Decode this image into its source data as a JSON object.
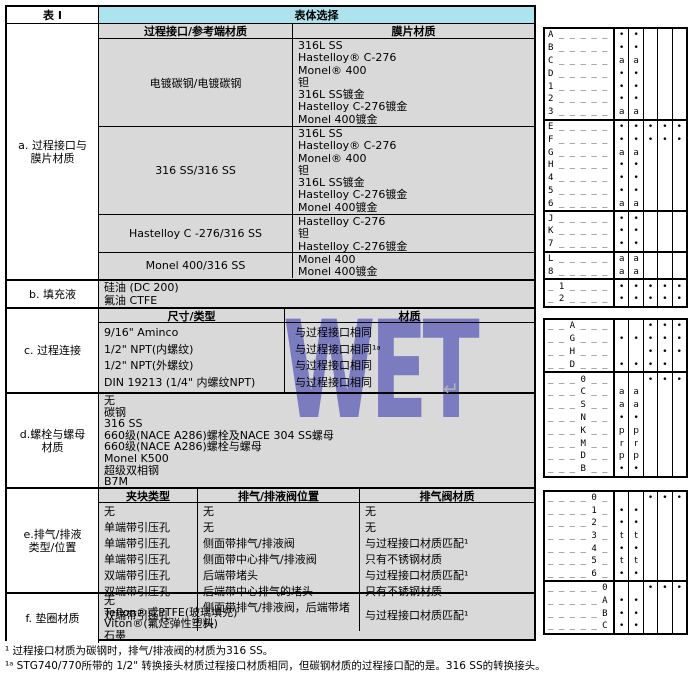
{
  "table": {
    "title": "表 I",
    "body_header": "表体选择"
  },
  "watermark": {
    "text": "WET",
    "color": "#9191e2"
  },
  "return_mark": "↵",
  "colors": {
    "header_cyan": "#ade3ee",
    "cell_gray": "#d9d9d9"
  },
  "sections": {
    "a": {
      "label": "a. 过程接口与\n膜片材质",
      "col1_header": "过程接口/参考端材质",
      "col2_header": "膜片材质",
      "rows": [
        {
          "interface": "电镀碳钢/电镀碳钢",
          "materials": "316L SS\nHastelloy® C-276\nMonel® 400\n钽\n316L SS镀金\nHastelloy C-276镀金\nMonel 400镀金"
        },
        {
          "interface": "316 SS/316 SS",
          "materials": "316L SS\nHastelloy® C-276\nMonel® 400\n钽\n316L SS镀金\nHastelloy C-276镀金\nMonel 400镀金"
        },
        {
          "interface": "Hastelloy C -276/316 SS",
          "materials": "Hastelloy C-276\n钽\nHastelloy C-276镀金"
        },
        {
          "interface": "Monel 400/316 SS",
          "materials": "Monel 400\nMonel 400镀金"
        }
      ]
    },
    "b": {
      "label": "b. 填充液",
      "lines": "硅油 (DC 200)\n氟油 CTFE"
    },
    "c": {
      "label": "c. 过程连接",
      "col1_header": "尺寸/类型",
      "col2_header": "材质",
      "rows": [
        {
          "t": "9/16\" Aminco",
          "m": "与过程接口相同"
        },
        {
          "t": "1/2\" NPT(内螺纹)",
          "m": "与过程接口相同¹ᵃ"
        },
        {
          "t": "1/2\"  NPT(外螺纹)",
          "m": "与过程接口相同"
        },
        {
          "t": "DIN 19213 (1/4\" 内螺纹NPT)",
          "m": "与过程接口相同"
        }
      ]
    },
    "d": {
      "label": "d.螺栓与螺母\n材质",
      "lines": "无\n碳钢\n316 SS\n660级(NACE A286)螺栓及NACE 304 SS螺母\n660级(NACE A286)螺栓与螺母\nMonel K500\n超级双相钢\nB7M"
    },
    "e": {
      "label": "e.排气/排液\n类型/位置",
      "col_headers": [
        "夹块类型",
        "排气/排液阀位置",
        "排气阀材质"
      ],
      "rows": [
        [
          "无",
          "无",
          "无"
        ],
        [
          "单端带引压孔",
          "无",
          "无"
        ],
        [
          "单端带引压孔",
          "侧面带排气/排液阀",
          "与过程接口材质匹配¹"
        ],
        [
          "单端带引压孔",
          "侧面带中心排气/排液阀",
          "只有不锈钢材质"
        ],
        [
          "双端带引压孔",
          "后端带堵头",
          "与过程接口材质匹配¹"
        ],
        [
          "双端带引压孔",
          "后端带中心排气的堵头",
          "只有不锈钢材质"
        ],
        [
          "双端带引压孔",
          "侧面带排气/排液阀，后端带堵头",
          "与过程接口材质匹配¹"
        ]
      ]
    },
    "f": {
      "label": "f. 垫圈材质",
      "lines": "无\nTeflon®或PTFE(玻璃填充)\nViton®(氟烃弹性塑料)\n石墨"
    }
  },
  "footnotes": [
    "¹ 过程接口材质为碳钢时，排气/排液阀的材质为316 SS。",
    "¹ᵃ STG740/770所带的 1/2\" 转换接头材质过程接口材质相同，但碳钢材质的过程接口配的是。316 SS的转换接头。"
  ],
  "code_tables": {
    "block1": {
      "groups": [
        {
          "rows": [
            {
              "code": "A _ _ _ _ _",
              "cells": [
                "•",
                "•",
                "",
                "",
                ""
              ]
            },
            {
              "code": "B _ _ _ _ _",
              "cells": [
                "•",
                "•",
                "",
                "",
                ""
              ]
            },
            {
              "code": "C _ _ _ _ _",
              "cells": [
                "a",
                "a",
                "",
                "",
                ""
              ]
            },
            {
              "code": "D _ _ _ _ _",
              "cells": [
                "•",
                "•",
                "",
                "",
                ""
              ]
            },
            {
              "code": "1 _ _ _ _ _",
              "cells": [
                "•",
                "•",
                "",
                "",
                ""
              ]
            },
            {
              "code": "2 _ _ _ _ _",
              "cells": [
                "•",
                "•",
                "",
                "",
                ""
              ]
            },
            {
              "code": "3 _ _ _ _ _",
              "cells": [
                "a",
                "a",
                "",
                "",
                ""
              ]
            }
          ]
        },
        {
          "rows": [
            {
              "code": "E _ _ _ _ _",
              "cells": [
                "•",
                "•",
                "•",
                "•",
                "•"
              ]
            },
            {
              "code": "F _ _ _ _ _",
              "cells": [
                "•",
                "•",
                "•",
                "•",
                "•"
              ]
            },
            {
              "code": "G _ _ _ _ _",
              "cells": [
                "a",
                "a",
                "",
                "",
                ""
              ]
            },
            {
              "code": "H _ _ _ _ _",
              "cells": [
                "•",
                "•",
                "",
                "",
                ""
              ]
            },
            {
              "code": "4 _ _ _ _ _",
              "cells": [
                "•",
                "•",
                "",
                "",
                ""
              ]
            },
            {
              "code": "5 _ _ _ _ _",
              "cells": [
                "•",
                "•",
                "",
                "",
                ""
              ]
            },
            {
              "code": "6 _ _ _ _ _",
              "cells": [
                "a",
                "a",
                "",
                "",
                ""
              ]
            }
          ]
        },
        {
          "rows": [
            {
              "code": "J _ _ _ _ _",
              "cells": [
                "•",
                "•",
                "",
                "",
                ""
              ]
            },
            {
              "code": "K _ _ _ _ _",
              "cells": [
                "•",
                "•",
                "",
                "",
                ""
              ]
            },
            {
              "code": "7 _ _ _ _ _",
              "cells": [
                "•",
                "•",
                "",
                "",
                ""
              ]
            }
          ]
        },
        {
          "rows": [
            {
              "code": "L _ _ _ _ _",
              "cells": [
                "a",
                "a",
                "",
                "",
                ""
              ]
            },
            {
              "code": "8 _ _ _ _ _",
              "cells": [
                "a",
                "a",
                "",
                "",
                ""
              ]
            }
          ]
        },
        {
          "rows": [
            {
              "code": "_ 1 _ _ _ _",
              "cells": [
                "•",
                "•",
                "•",
                "•",
                "•"
              ]
            },
            {
              "code": "_ 2 _ _ _ _",
              "cells": [
                "•",
                "•",
                "•",
                "•",
                "•"
              ]
            }
          ]
        }
      ]
    },
    "block2": {
      "groups": [
        {
          "rows": [
            {
              "code": "_ _ A _ _ _",
              "cells": [
                "",
                "",
                "•",
                "•",
                "•"
              ]
            },
            {
              "code": "_ _ G _ _ _",
              "cells": [
                "•",
                "•",
                "•",
                "•",
                "•"
              ]
            },
            {
              "code": "_ _ H _ _ _",
              "cells": [
                "",
                "",
                "•",
                "•",
                "•"
              ]
            },
            {
              "code": "_ _ D _ _ _",
              "cells": [
                "•",
                "•",
                "•",
                "•",
                ""
              ]
            }
          ]
        },
        {
          "rows": [
            {
              "code": "_ _ _ 0 _ _",
              "cells": [
                "",
                "",
                "•",
                "•",
                "•"
              ]
            },
            {
              "code": "_ _ _ C _ _",
              "cells": [
                "a",
                "a",
                "",
                "",
                ""
              ]
            },
            {
              "code": "_ _ _ S _ _",
              "cells": [
                "a",
                "a",
                "",
                "",
                ""
              ]
            },
            {
              "code": "_ _ _ N _ _",
              "cells": [
                "•",
                "•",
                "",
                "",
                ""
              ]
            },
            {
              "code": "_ _ _ K _ _",
              "cells": [
                "p",
                "p",
                "",
                "",
                ""
              ]
            },
            {
              "code": "_ _ _ M _ _",
              "cells": [
                "r",
                "r",
                "",
                "",
                ""
              ]
            },
            {
              "code": "_ _ _ D _ _",
              "cells": [
                "p",
                "p",
                "",
                "",
                ""
              ]
            },
            {
              "code": "_ _ _ B _ _",
              "cells": [
                "•",
                "•",
                "",
                "",
                ""
              ]
            }
          ]
        }
      ]
    },
    "block3": {
      "groups": [
        {
          "rows": [
            {
              "code": "_ _ _ _ 0 _",
              "cells": [
                "",
                "",
                "•",
                "•",
                "•"
              ]
            },
            {
              "code": "_ _ _ _ 1 _",
              "cells": [
                "•",
                "•",
                "",
                "",
                ""
              ]
            },
            {
              "code": "_ _ _ _ 2 _",
              "cells": [
                "•",
                "•",
                "",
                "",
                ""
              ]
            },
            {
              "code": "_ _ _ _ 3 _",
              "cells": [
                "t",
                "t",
                "",
                "",
                ""
              ]
            },
            {
              "code": "_ _ _ _ 4 _",
              "cells": [
                "•",
                "•",
                "",
                "",
                ""
              ]
            },
            {
              "code": "_ _ _ _ 5 _",
              "cells": [
                "t",
                "t",
                "",
                "",
                ""
              ]
            },
            {
              "code": "_ _ _ _ 6 _",
              "cells": [
                "•",
                "•",
                "",
                "",
                ""
              ]
            }
          ]
        },
        {
          "rows": [
            {
              "code": "_ _ _ _ _ 0",
              "cells": [
                "",
                "",
                "•",
                "•",
                "•"
              ]
            },
            {
              "code": "_ _ _ _ _ A",
              "cells": [
                "•",
                "•",
                "",
                "",
                ""
              ]
            },
            {
              "code": "_ _ _ _ _ B",
              "cells": [
                "•",
                "•",
                "",
                "",
                ""
              ]
            },
            {
              "code": "_ _ _ _ _ C",
              "cells": [
                "•",
                "•",
                "",
                "",
                ""
              ]
            }
          ]
        }
      ]
    }
  }
}
